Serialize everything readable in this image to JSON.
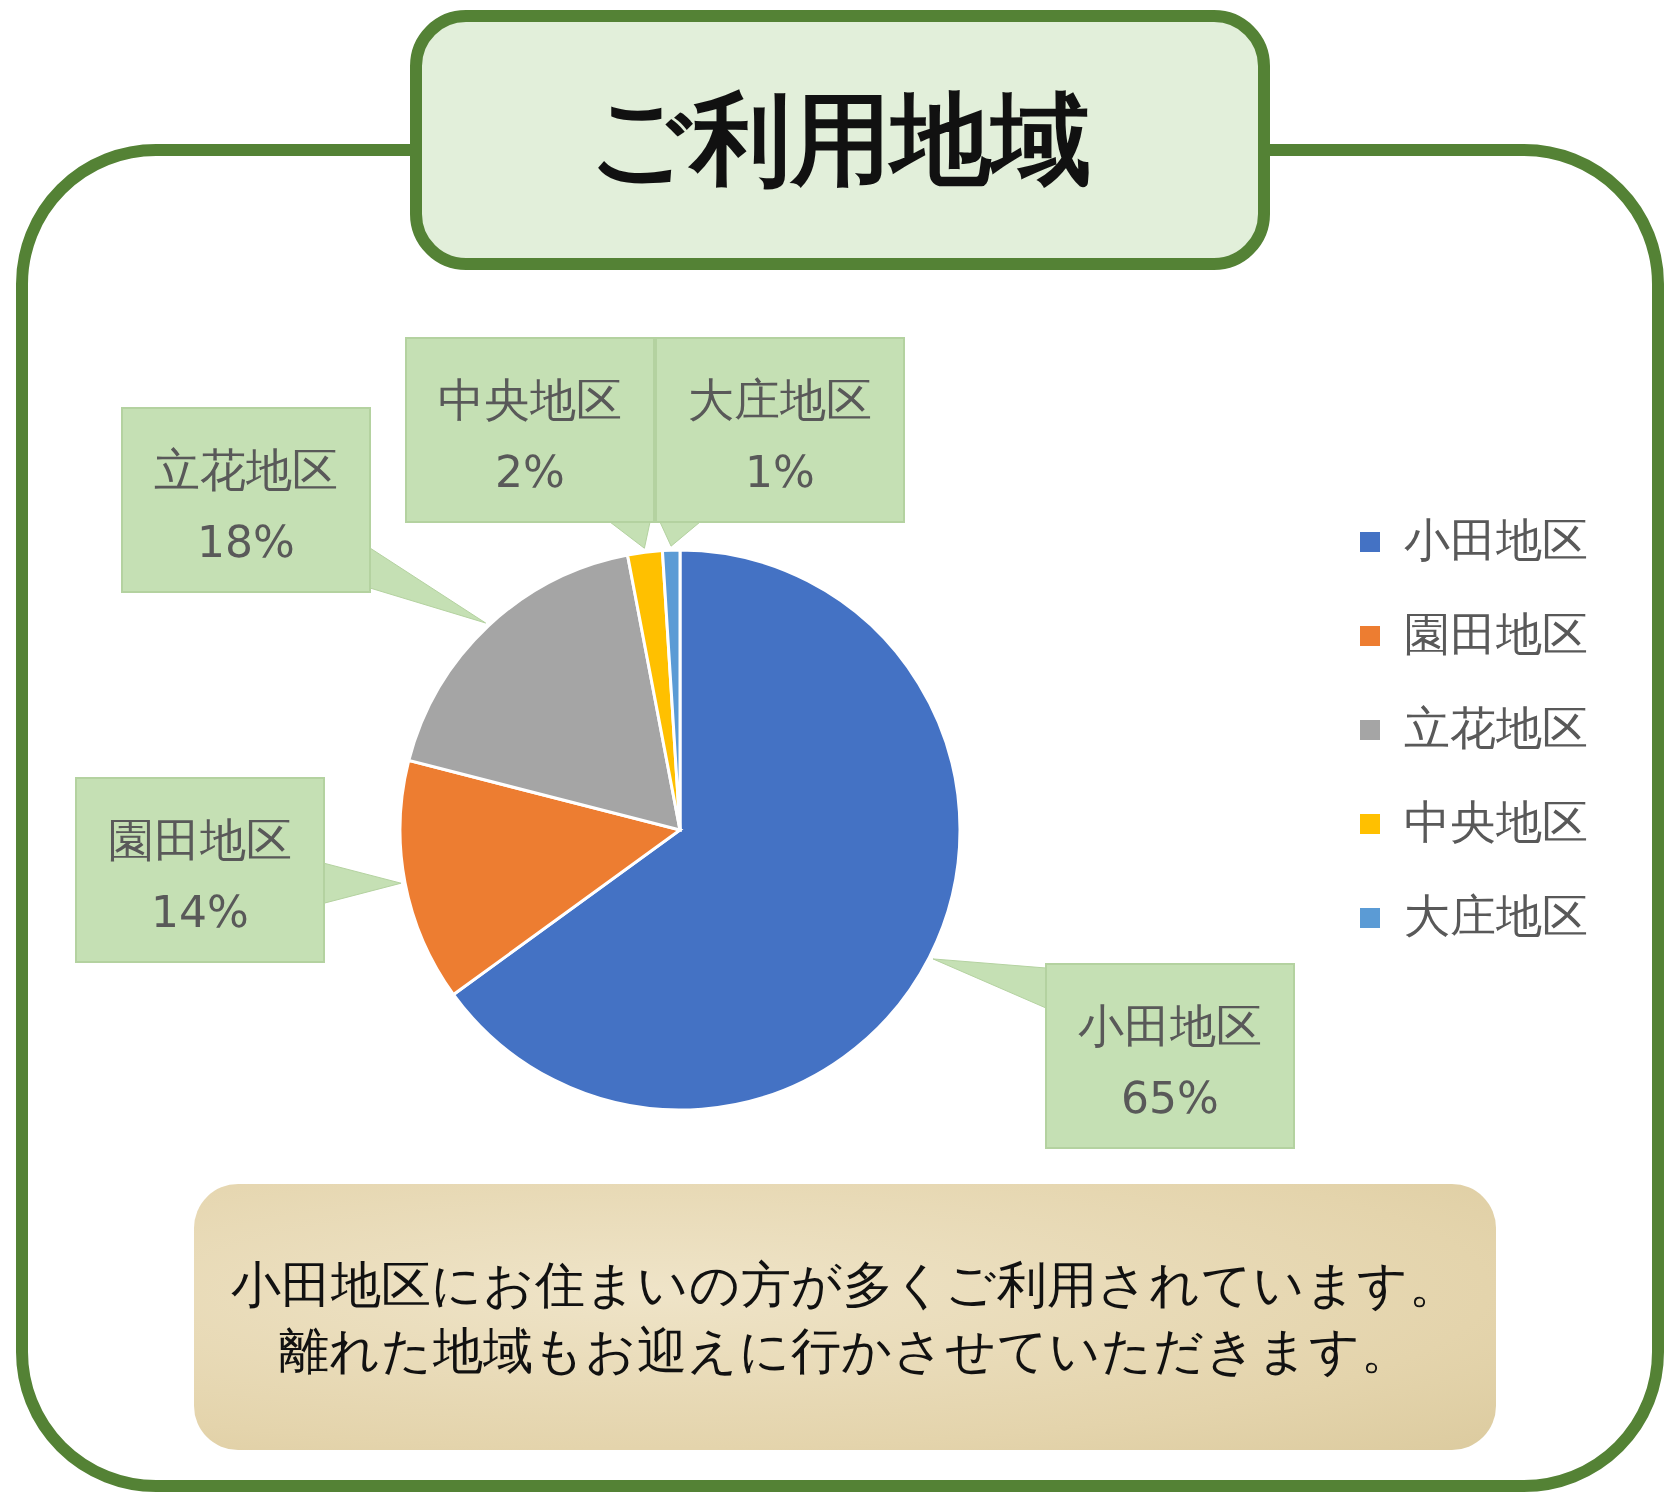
{
  "chart_data": {
    "type": "pie",
    "title": "ご利用地域",
    "categories": [
      "小田地区",
      "園田地区",
      "立花地区",
      "中央地区",
      "大庄地区"
    ],
    "values": [
      65,
      14,
      18,
      2,
      1
    ],
    "colors": [
      "#4472c4",
      "#ed7d31",
      "#a5a5a5",
      "#ffc000",
      "#5b9bd5"
    ],
    "value_labels": [
      "65%",
      "14%",
      "18%",
      "2%",
      "1%"
    ],
    "legend": "right",
    "annotations": [
      "小田地区にお住まいの方が多くご利用されています。",
      "離れた地域もお迎えに行かさせていただきます。"
    ]
  }
}
